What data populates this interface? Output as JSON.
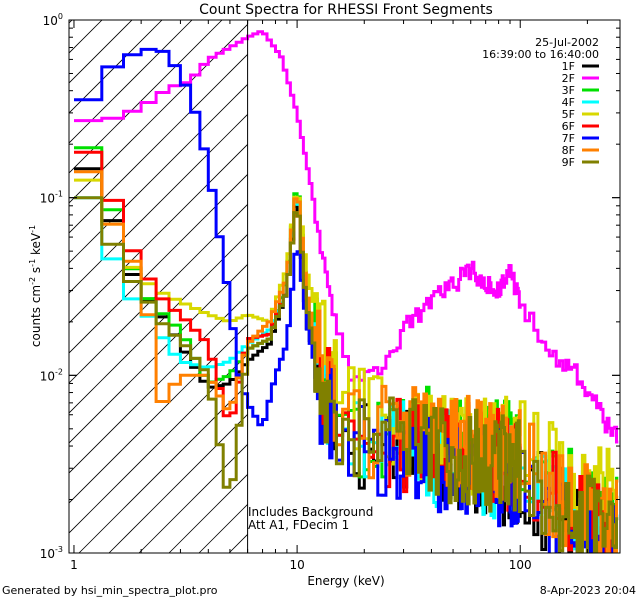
{
  "chart_data": {
    "type": "line",
    "title": "Count Spectra for RHESSI Front Segments",
    "xlabel": "Energy (keV)",
    "ylabel_parts": {
      "base": "counts cm",
      "e1": "-2",
      "mid": " s",
      "e2": "-1",
      "mid2": " keV",
      "e3": "-1"
    },
    "x_scale": "log",
    "y_scale": "log",
    "xlim": [
      0.95,
      280
    ],
    "ylim": [
      0.001,
      1.0
    ],
    "x_ticks": [
      {
        "value": 1,
        "label": "1"
      },
      {
        "value": 10,
        "label": "10"
      },
      {
        "value": 100,
        "label": "100"
      }
    ],
    "y_ticks": [
      {
        "value": 1.0,
        "base": "10",
        "exp": "0"
      },
      {
        "value": 0.1,
        "base": "10",
        "exp": "-1"
      },
      {
        "value": 0.01,
        "base": "10",
        "exp": "-2"
      },
      {
        "value": 0.001,
        "base": "10",
        "exp": "-3"
      }
    ],
    "date": "25-Jul-2002",
    "time_range": "16:39:00 to 16:40:00",
    "annotations": {
      "line1": "Includes Background",
      "line2": "Att A1, FDecim 1"
    },
    "threshold_energy": 6.0,
    "series": [
      {
        "name": "1F",
        "color": "#000000",
        "anchors": [
          [
            1.1,
            0.14
          ],
          [
            1.3,
            0.16
          ],
          [
            1.6,
            0.05
          ],
          [
            2.0,
            0.03
          ],
          [
            2.6,
            0.02
          ],
          [
            3.0,
            0.015
          ],
          [
            4.0,
            0.0085
          ],
          [
            5.0,
            0.009
          ],
          [
            6.0,
            0.012
          ],
          [
            7.5,
            0.015
          ],
          [
            9.0,
            0.03
          ],
          [
            10.0,
            0.11
          ],
          [
            11.0,
            0.02
          ],
          [
            13.0,
            0.008
          ],
          [
            18.0,
            0.004
          ],
          [
            30.0,
            0.0045
          ],
          [
            60.0,
            0.003
          ],
          [
            100.0,
            0.0025
          ],
          [
            150.0,
            0.0015
          ],
          [
            250.0,
            0.001
          ]
        ]
      },
      {
        "name": "2F",
        "color": "#ff00ff",
        "anchors": [
          [
            1.1,
            0.27
          ],
          [
            1.5,
            0.28
          ],
          [
            2.0,
            0.32
          ],
          [
            2.7,
            0.42
          ],
          [
            3.3,
            0.45
          ],
          [
            4.0,
            0.6
          ],
          [
            5.0,
            0.7
          ],
          [
            6.0,
            0.8
          ],
          [
            7.0,
            0.87
          ],
          [
            8.5,
            0.62
          ],
          [
            10.0,
            0.3
          ],
          [
            11.5,
            0.12
          ],
          [
            13.0,
            0.05
          ],
          [
            15.0,
            0.02
          ],
          [
            17.0,
            0.011
          ],
          [
            20.0,
            0.009
          ],
          [
            25.0,
            0.012
          ],
          [
            30.0,
            0.018
          ],
          [
            40.0,
            0.026
          ],
          [
            50.0,
            0.032
          ],
          [
            60.0,
            0.04
          ],
          [
            70.0,
            0.032
          ],
          [
            80.0,
            0.03
          ],
          [
            90.0,
            0.04
          ],
          [
            100.0,
            0.025
          ],
          [
            120.0,
            0.018
          ],
          [
            150.0,
            0.012
          ],
          [
            180.0,
            0.01
          ],
          [
            220.0,
            0.007
          ],
          [
            250.0,
            0.005
          ],
          [
            280.0,
            0.0045
          ]
        ]
      },
      {
        "name": "3F",
        "color": "#00e000",
        "anchors": [
          [
            1.1,
            0.2
          ],
          [
            1.3,
            0.17
          ],
          [
            1.6,
            0.06
          ],
          [
            2.0,
            0.03
          ],
          [
            2.6,
            0.021
          ],
          [
            3.0,
            0.018
          ],
          [
            4.0,
            0.009
          ],
          [
            5.0,
            0.01
          ],
          [
            6.0,
            0.014
          ],
          [
            7.5,
            0.016
          ],
          [
            9.0,
            0.035
          ],
          [
            10.0,
            0.13
          ],
          [
            11.0,
            0.03
          ],
          [
            13.0,
            0.009
          ],
          [
            18.0,
            0.005
          ],
          [
            30.0,
            0.005
          ],
          [
            60.0,
            0.004
          ],
          [
            100.0,
            0.004
          ],
          [
            150.0,
            0.0025
          ],
          [
            250.0,
            0.0015
          ]
        ]
      },
      {
        "name": "4F",
        "color": "#00ffff",
        "anchors": [
          [
            1.1,
            0.1
          ],
          [
            1.3,
            0.1
          ],
          [
            1.6,
            0.03
          ],
          [
            2.0,
            0.025
          ],
          [
            2.6,
            0.015
          ],
          [
            3.0,
            0.012
          ],
          [
            4.0,
            0.011
          ],
          [
            5.0,
            0.012
          ],
          [
            6.0,
            0.015
          ],
          [
            7.5,
            0.018
          ],
          [
            9.0,
            0.03
          ],
          [
            10.0,
            0.12
          ],
          [
            11.0,
            0.025
          ],
          [
            13.0,
            0.008
          ],
          [
            18.0,
            0.004
          ],
          [
            30.0,
            0.004
          ],
          [
            60.0,
            0.003
          ],
          [
            100.0,
            0.003
          ],
          [
            150.0,
            0.002
          ],
          [
            250.0,
            0.0012
          ]
        ]
      },
      {
        "name": "5F",
        "color": "#d8d800",
        "anchors": [
          [
            1.1,
            0.12
          ],
          [
            1.3,
            0.14
          ],
          [
            1.6,
            0.05
          ],
          [
            2.0,
            0.035
          ],
          [
            2.6,
            0.028
          ],
          [
            3.0,
            0.026
          ],
          [
            4.0,
            0.022
          ],
          [
            5.0,
            0.02
          ],
          [
            6.0,
            0.022
          ],
          [
            7.5,
            0.02
          ],
          [
            9.0,
            0.04
          ],
          [
            10.0,
            0.12
          ],
          [
            11.0,
            0.04
          ],
          [
            13.0,
            0.015
          ],
          [
            18.0,
            0.006
          ],
          [
            30.0,
            0.005
          ],
          [
            60.0,
            0.004
          ],
          [
            100.0,
            0.004
          ],
          [
            150.0,
            0.003
          ],
          [
            250.0,
            0.002
          ]
        ]
      },
      {
        "name": "6F",
        "color": "#ff0000",
        "anchors": [
          [
            1.1,
            0.18
          ],
          [
            1.3,
            0.18
          ],
          [
            1.6,
            0.07
          ],
          [
            2.0,
            0.04
          ],
          [
            2.6,
            0.025
          ],
          [
            3.0,
            0.022
          ],
          [
            4.0,
            0.015
          ],
          [
            5.0,
            0.005
          ],
          [
            6.0,
            0.016
          ],
          [
            7.5,
            0.017
          ],
          [
            9.0,
            0.03
          ],
          [
            10.0,
            0.1
          ],
          [
            11.0,
            0.025
          ],
          [
            13.0,
            0.009
          ],
          [
            18.0,
            0.005
          ],
          [
            30.0,
            0.004
          ],
          [
            60.0,
            0.004
          ],
          [
            100.0,
            0.003
          ],
          [
            150.0,
            0.002
          ],
          [
            250.0,
            0.0012
          ]
        ]
      },
      {
        "name": "7F",
        "color": "#0000ff",
        "anchors": [
          [
            1.1,
            0.35
          ],
          [
            1.2,
            0.36
          ],
          [
            1.4,
            0.5
          ],
          [
            1.7,
            0.65
          ],
          [
            2.0,
            0.62
          ],
          [
            2.3,
            0.74
          ],
          [
            2.7,
            0.6
          ],
          [
            3.0,
            0.5
          ],
          [
            3.4,
            0.35
          ],
          [
            4.0,
            0.15
          ],
          [
            4.5,
            0.06
          ],
          [
            5.0,
            0.025
          ],
          [
            5.5,
            0.01
          ],
          [
            6.0,
            0.007
          ],
          [
            7.0,
            0.005
          ],
          [
            8.0,
            0.01
          ],
          [
            9.0,
            0.015
          ],
          [
            10.0,
            0.06
          ],
          [
            11.0,
            0.02
          ],
          [
            13.0,
            0.007
          ],
          [
            18.0,
            0.004
          ],
          [
            30.0,
            0.003
          ],
          [
            60.0,
            0.003
          ],
          [
            100.0,
            0.0025
          ],
          [
            150.0,
            0.0015
          ],
          [
            250.0,
            0.001
          ]
        ]
      },
      {
        "name": "8F",
        "color": "#ff8000",
        "anchors": [
          [
            1.1,
            0.14
          ],
          [
            1.3,
            0.14
          ],
          [
            1.6,
            0.05
          ],
          [
            2.0,
            0.04
          ],
          [
            2.5,
            0.007
          ],
          [
            3.0,
            0.01
          ],
          [
            4.0,
            0.01
          ],
          [
            5.0,
            0.006
          ],
          [
            6.0,
            0.015
          ],
          [
            7.5,
            0.02
          ],
          [
            9.0,
            0.035
          ],
          [
            10.0,
            0.12
          ],
          [
            11.0,
            0.03
          ],
          [
            13.0,
            0.01
          ],
          [
            18.0,
            0.005
          ],
          [
            30.0,
            0.005
          ],
          [
            60.0,
            0.004
          ],
          [
            100.0,
            0.0035
          ],
          [
            150.0,
            0.002
          ],
          [
            250.0,
            0.0015
          ]
        ]
      },
      {
        "name": "9F",
        "color": "#808000",
        "anchors": [
          [
            1.1,
            0.1
          ],
          [
            1.3,
            0.1
          ],
          [
            1.6,
            0.04
          ],
          [
            2.0,
            0.03
          ],
          [
            2.6,
            0.018
          ],
          [
            3.0,
            0.016
          ],
          [
            4.0,
            0.01
          ],
          [
            5.0,
            0.0018
          ],
          [
            6.0,
            0.014
          ],
          [
            7.5,
            0.016
          ],
          [
            9.0,
            0.03
          ],
          [
            10.0,
            0.1
          ],
          [
            11.0,
            0.025
          ],
          [
            13.0,
            0.008
          ],
          [
            18.0,
            0.0045
          ],
          [
            30.0,
            0.004
          ],
          [
            60.0,
            0.0035
          ],
          [
            100.0,
            0.003
          ],
          [
            150.0,
            0.002
          ],
          [
            250.0,
            0.0012
          ]
        ]
      }
    ]
  },
  "footer": {
    "left": "Generated by hsi_min_spectra_plot.pro",
    "right": "8-Apr-2023 20:04"
  }
}
